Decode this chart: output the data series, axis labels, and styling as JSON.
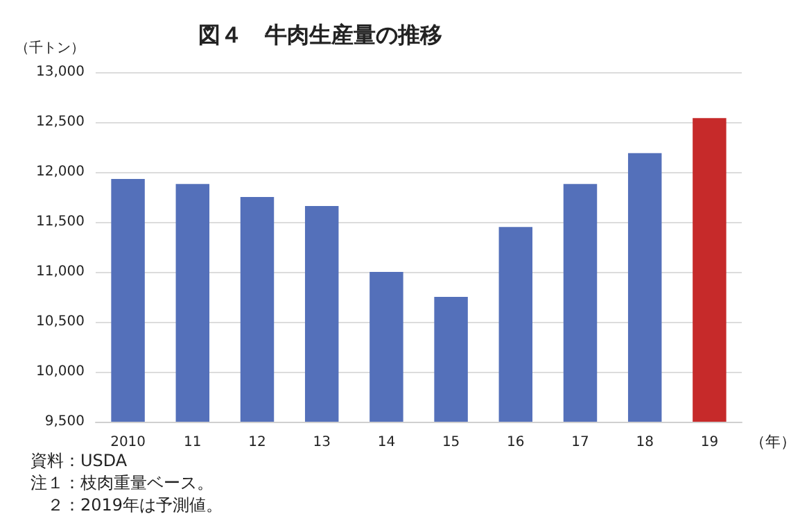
{
  "chart_data": {
    "type": "bar",
    "title": "図４　牛肉生産量の推移",
    "ylabel": "（千トン）",
    "xlabel": "（年）",
    "categories": [
      "2010",
      "11",
      "12",
      "13",
      "14",
      "15",
      "16",
      "17",
      "18",
      "19"
    ],
    "values": [
      11930,
      11880,
      11750,
      11660,
      11000,
      10750,
      11450,
      11880,
      12190,
      12540
    ],
    "colors": [
      "#5470ba",
      "#5470ba",
      "#5470ba",
      "#5470ba",
      "#5470ba",
      "#5470ba",
      "#5470ba",
      "#5470ba",
      "#5470ba",
      "#c62a2a"
    ],
    "ylim": [
      9500,
      13000
    ],
    "yticks": [
      {
        "value": 9500,
        "label": "9,500"
      },
      {
        "value": 10000,
        "label": "10,000"
      },
      {
        "value": 10500,
        "label": "10,500"
      },
      {
        "value": 11000,
        "label": "11,000"
      },
      {
        "value": 11500,
        "label": "11,500"
      },
      {
        "value": 12000,
        "label": "12,000"
      },
      {
        "value": 12500,
        "label": "12,500"
      },
      {
        "value": 13000,
        "label": "13,000"
      }
    ],
    "grid": "y",
    "annotations": [
      "資料：USDA",
      "注１：枝肉重量ベース。",
      "　２：2019年は予測値。"
    ]
  }
}
